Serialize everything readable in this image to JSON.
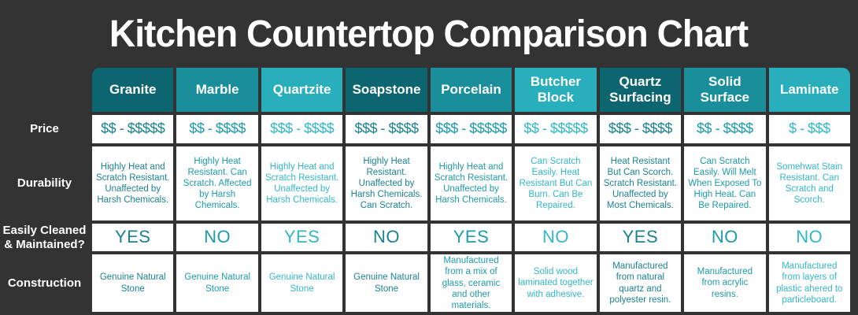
{
  "title": "Kitchen Countertop Comparison Chart",
  "colors": {
    "background": "#333333",
    "header_dark": "#0d6570",
    "header_mid": "#1b8e9b",
    "header_bright": "#29aebc",
    "cell_text_dark": "#1c828f",
    "cell_text_mid": "#1e9ba8",
    "cell_text_bright": "#33b7c7",
    "cell_background": "#ffffff",
    "title_color": "#ffffff"
  },
  "row_labels": {
    "price": "Price",
    "durability": "Durability",
    "cleaned_line1": "Easily Cleaned",
    "cleaned_line2": "& Maintained?",
    "construction": "Construction"
  },
  "chart_data": {
    "type": "table",
    "title": "Kitchen Countertop Comparison Chart",
    "row_headers": [
      "Price",
      "Durability",
      "Easily Cleaned & Maintained?",
      "Construction"
    ],
    "columns": [
      {
        "name": "Granite",
        "price": "$$ - $$$$$",
        "durability": "Highly Heat and Scratch Resistant. Unaffected by Harsh Chemicals.",
        "cleaned": "YES",
        "construction": "Genuine Natural Stone"
      },
      {
        "name": "Marble",
        "price": "$$ - $$$$",
        "durability": "Highly Heat Resistant. Can Scratch. Affected by Harsh Chemicals.",
        "cleaned": "NO",
        "construction": "Genuine Natural Stone"
      },
      {
        "name": "Quartzite",
        "price": "$$$ - $$$$",
        "durability": "Highly Heat and Scratch Resistant. Unaffected by Harsh Chemicals.",
        "cleaned": "YES",
        "construction": "Genuine Natural Stone"
      },
      {
        "name": "Soapstone",
        "price": "$$$ - $$$$",
        "durability": "Highly Heat Resistant. Unaffected by Harsh Chemicals. Can Scratch.",
        "cleaned": "NO",
        "construction": "Genuine Natural Stone"
      },
      {
        "name": "Porcelain",
        "price": "$$$ - $$$$$",
        "durability": "Highly Heat and Scratch Resistant. Unaffected by Harsh Chemicals.",
        "cleaned": "YES",
        "construction": "Manufactured from a mix of glass, ceramic and other materials."
      },
      {
        "name": "Butcher Block",
        "price": "$$ - $$$$$",
        "durability": "Can Scratch Easily. Heat Resistant But Can Burn. Can Be Repaired.",
        "cleaned": "NO",
        "construction": "Solid wood laminated together with adhesive."
      },
      {
        "name": "Quartz Surfacing",
        "price": "$$$ - $$$$",
        "durability": "Heat Resistant But Can Scorch. Scratch Resistant. Unaffected by Most Chemicals.",
        "cleaned": "YES",
        "construction": "Manufactured from natural quartz and polyester resin."
      },
      {
        "name": "Solid Surface",
        "price": "$$ - $$$$",
        "durability": "Can Scratch Easily. Will Melt When Exposed To High Heat. Can Be Repaired.",
        "cleaned": "NO",
        "construction": "Manufactured from acrylic resins."
      },
      {
        "name": "Laminate",
        "price": "$ - $$$",
        "durability": "Somehwat Stain Resistant. Can Scratch and Scorch.",
        "cleaned": "NO",
        "construction": "Manufactured from layers of plastic ahered to particleboard."
      }
    ]
  }
}
